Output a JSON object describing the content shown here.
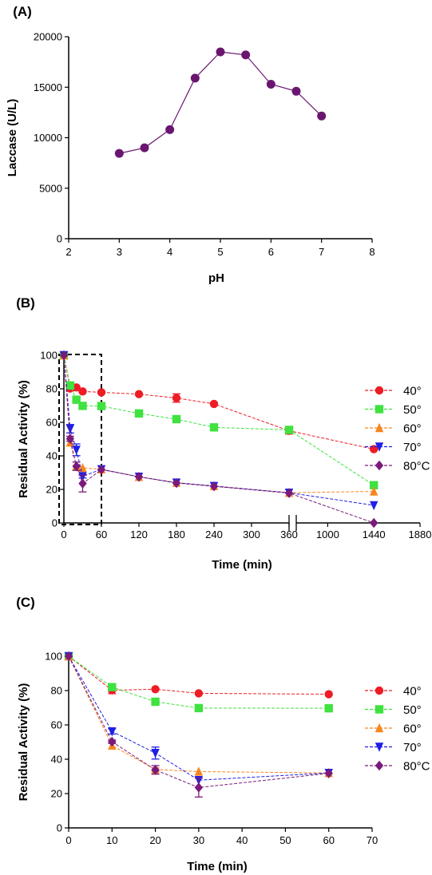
{
  "panel_labels": [
    "(A)",
    "(B)",
    "(C)"
  ],
  "chart_data": [
    {
      "type": "line",
      "panel": "(A)",
      "xlabel": "pH",
      "ylabel": "Laccase (U/L)",
      "xlim": [
        2,
        8
      ],
      "ylim": [
        0,
        20000
      ],
      "xticks": [
        "2",
        "3",
        "4",
        "5",
        "6",
        "7",
        "8"
      ],
      "yticks": [
        "0",
        "5000",
        "10000",
        "15000",
        "20000"
      ],
      "grid": false,
      "series": [
        {
          "color": "#6a1670",
          "marker": "circle",
          "x": [
            3,
            3.5,
            4,
            4.5,
            5,
            5.5,
            6,
            6.5,
            7
          ],
          "y": [
            8450,
            9000,
            10800,
            15900,
            18500,
            18200,
            15300,
            14600,
            12150
          ]
        }
      ]
    },
    {
      "type": "line",
      "panel": "(B)",
      "xlabel": "Time (min)",
      "ylabel": "Residual Activity (%)",
      "ylim": [
        0,
        100
      ],
      "yticks": [
        "0",
        "20",
        "40",
        "60",
        "80",
        "100"
      ],
      "xticks_left": [
        "0",
        "60",
        "120",
        "180",
        "240",
        "300",
        "360"
      ],
      "xticks_right": [
        "1000",
        "1440",
        "1880"
      ],
      "axis_break": "360–1000 min",
      "xlim_left": [
        0,
        360
      ],
      "xlim_right": [
        700,
        1880
      ],
      "grid": false,
      "legend_position": "right",
      "series": [
        {
          "name": "40°",
          "color": "#ee1c25",
          "marker": "circle",
          "x": [
            0,
            10,
            20,
            30,
            60,
            120,
            180,
            240,
            360,
            1440
          ],
          "y": [
            100,
            80.2,
            80.8,
            78.4,
            77.9,
            76.8,
            74.5,
            71,
            55,
            44
          ],
          "err": [
            0,
            1.5,
            0.5,
            0.5,
            0.5,
            0.5,
            2.5,
            0.5,
            2,
            0.5
          ]
        },
        {
          "name": "50°",
          "color": "#3fe23f",
          "marker": "square",
          "x": [
            0,
            10,
            20,
            30,
            60,
            120,
            180,
            240,
            360,
            1440
          ],
          "y": [
            100,
            82,
            73.5,
            69.8,
            69.7,
            65.3,
            61.9,
            57,
            55.5,
            22.5
          ],
          "err": [
            0,
            0.5,
            0.5,
            0.5,
            0.5,
            0.5,
            0.5,
            0.5,
            0.5,
            0.5
          ]
        },
        {
          "name": "60°",
          "color": "#f7861f",
          "marker": "triangle-up",
          "x": [
            0,
            10,
            20,
            30,
            60,
            120,
            180,
            240,
            360,
            1440
          ],
          "y": [
            100,
            48,
            34,
            32.8,
            32,
            27.5,
            24,
            22,
            18,
            18.8
          ],
          "err": [
            0,
            0.5,
            0.5,
            0.5,
            0.5,
            0.5,
            0.5,
            0.5,
            0.5,
            0.5
          ]
        },
        {
          "name": "70°",
          "color": "#1f1fe6",
          "marker": "triangle-down",
          "x": [
            0,
            10,
            20,
            30,
            60,
            120,
            180,
            240,
            360,
            1440
          ],
          "y": [
            100,
            56.2,
            43.6,
            27.8,
            32,
            27.5,
            24,
            22,
            18,
            10.5
          ],
          "err": [
            0,
            2.5,
            3.5,
            1,
            0.5,
            0.5,
            0.5,
            0.5,
            0.5,
            0.5
          ]
        },
        {
          "name": "80°C",
          "color": "#7b1a7b",
          "marker": "diamond",
          "x": [
            0,
            10,
            20,
            30,
            60,
            120,
            180,
            240,
            360,
            1440
          ],
          "y": [
            100,
            50.2,
            33.8,
            23.5,
            31.8,
            27.5,
            23.8,
            21.8,
            17.8,
            0
          ],
          "err": [
            0,
            1.5,
            2.5,
            5,
            0.5,
            0.5,
            0.5,
            0.5,
            0.5,
            0
          ]
        }
      ]
    },
    {
      "type": "line",
      "panel": "(C)",
      "xlabel": "Time (min)",
      "ylabel": "Residual Activity (%)",
      "xlim": [
        0,
        70
      ],
      "ylim": [
        0,
        100
      ],
      "xticks": [
        "0",
        "10",
        "20",
        "30",
        "40",
        "50",
        "60",
        "70"
      ],
      "yticks": [
        "0",
        "20",
        "40",
        "60",
        "80",
        "100"
      ],
      "grid": false,
      "legend_position": "right",
      "series": [
        {
          "name": "40°",
          "color": "#ee1c25",
          "marker": "circle",
          "x": [
            0,
            10,
            20,
            30,
            60
          ],
          "y": [
            100,
            80.2,
            80.8,
            78.4,
            77.9
          ],
          "err": [
            0,
            2,
            0.5,
            0.5,
            0.5
          ]
        },
        {
          "name": "50°",
          "color": "#3fe23f",
          "marker": "square",
          "x": [
            0,
            10,
            20,
            30,
            60
          ],
          "y": [
            100,
            82,
            73.5,
            69.8,
            69.7
          ],
          "err": [
            0,
            0.5,
            0.5,
            0.5,
            0.5
          ]
        },
        {
          "name": "60°",
          "color": "#f7861f",
          "marker": "triangle-up",
          "x": [
            0,
            10,
            20,
            30,
            60
          ],
          "y": [
            100,
            48,
            34,
            32.8,
            32
          ],
          "err": [
            0,
            0.5,
            1,
            0.5,
            0.5
          ]
        },
        {
          "name": "70°",
          "color": "#1f1fe6",
          "marker": "triangle-down",
          "x": [
            0,
            10,
            20,
            30,
            60
          ],
          "y": [
            100,
            56.2,
            43.6,
            27.8,
            32
          ],
          "err": [
            0,
            1.5,
            3.5,
            0.5,
            0.5
          ]
        },
        {
          "name": "80°C",
          "color": "#7b1a7b",
          "marker": "diamond",
          "x": [
            0,
            10,
            20,
            30,
            60
          ],
          "y": [
            100,
            50.2,
            33.8,
            23.5,
            31.8
          ],
          "err": [
            0,
            1,
            2.5,
            5.5,
            0.5
          ]
        }
      ]
    }
  ]
}
